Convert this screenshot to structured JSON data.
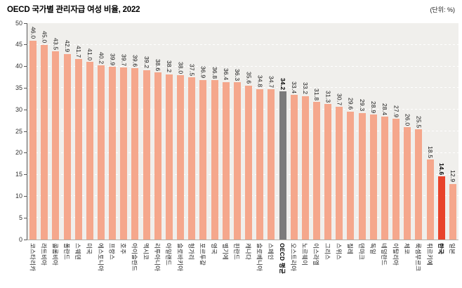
{
  "header": {
    "title": "OECD 국가별 관리자급 여성 비율, 2022",
    "unit": "(단위: %)"
  },
  "colors": {
    "bar": "#f5a78c",
    "oecd_bar": "#7b7b7b",
    "korea_bar": "#e8432b",
    "plot_bg": "#f0efec",
    "grid": "#ffffff"
  },
  "chart_data": {
    "type": "bar",
    "title": "OECD 국가별 관리자급 여성 비율, 2022",
    "unit_label": "(단위: %)",
    "ylim": [
      0,
      50
    ],
    "ytick_interval": 5,
    "grid": true,
    "legend": "none",
    "items": [
      {
        "label": "코스타리카",
        "value": 46.0
      },
      {
        "label": "라트비아",
        "value": 45.0
      },
      {
        "label": "콜롬비아",
        "value": 43.5
      },
      {
        "label": "폴란드",
        "value": 42.9
      },
      {
        "label": "스웨덴",
        "value": 41.7
      },
      {
        "label": "미국",
        "value": 41.0
      },
      {
        "label": "에스토니아",
        "value": 40.2
      },
      {
        "label": "프랑스",
        "value": 39.9
      },
      {
        "label": "호주",
        "value": 39.7
      },
      {
        "label": "아이슬란드",
        "value": 39.6
      },
      {
        "label": "멕시코",
        "value": 39.2
      },
      {
        "label": "리투아니아",
        "value": 38.6
      },
      {
        "label": "아일랜드",
        "value": 38.2
      },
      {
        "label": "슬로바키아",
        "value": 38.0
      },
      {
        "label": "헝가리",
        "value": 37.5
      },
      {
        "label": "포르투갈",
        "value": 36.9
      },
      {
        "label": "영국",
        "value": 36.8
      },
      {
        "label": "벨기에",
        "value": 36.4
      },
      {
        "label": "핀란드",
        "value": 36.3
      },
      {
        "label": "캐나다",
        "value": 35.6
      },
      {
        "label": "슬로베니아",
        "value": 34.8
      },
      {
        "label": "스페인",
        "value": 34.7
      },
      {
        "label": "OECD 평균",
        "value": 34.2,
        "color": "#7b7b7b",
        "bold": true
      },
      {
        "label": "오스트리아",
        "value": 33.4
      },
      {
        "label": "노르웨이",
        "value": 33.2
      },
      {
        "label": "이스라엘",
        "value": 31.8
      },
      {
        "label": "그리스",
        "value": 31.3
      },
      {
        "label": "스위스",
        "value": 30.7
      },
      {
        "label": "칠레",
        "value": 29.6
      },
      {
        "label": "덴마크",
        "value": 29.3
      },
      {
        "label": "독일",
        "value": 28.9
      },
      {
        "label": "네덜란드",
        "value": 28.4
      },
      {
        "label": "이탈리아",
        "value": 27.9
      },
      {
        "label": "체코",
        "value": 26.0
      },
      {
        "label": "룩셈부르크",
        "value": 25.5
      },
      {
        "label": "튀르키예",
        "value": 18.5
      },
      {
        "label": "한국",
        "value": 14.6,
        "color": "#e8432b",
        "bold": true
      },
      {
        "label": "일본",
        "value": 12.9
      }
    ]
  }
}
